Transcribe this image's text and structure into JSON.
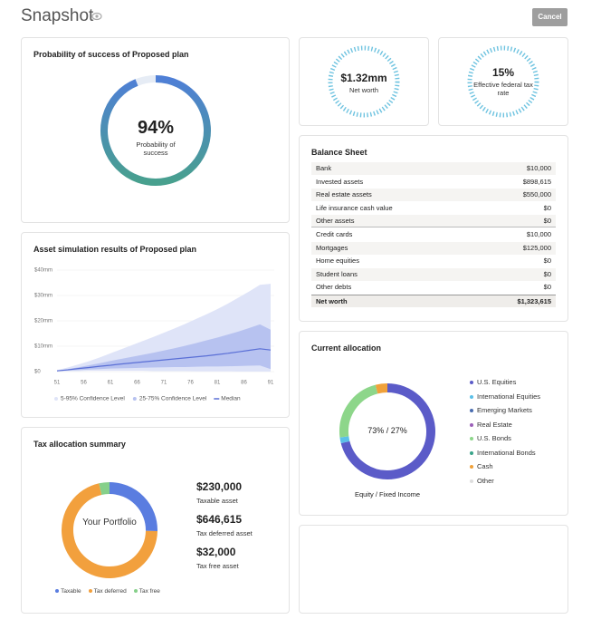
{
  "header": {
    "title": "Snapshot",
    "button": "Cancel"
  },
  "probability": {
    "title": "Probability of success of Proposed plan",
    "chart_data": {
      "type": "gauge",
      "value": 94,
      "value_label": "94%",
      "caption": "Probability of success",
      "colors": [
        "#4f7fd6",
        "#48a08e"
      ],
      "track_color": "#e6ecf5"
    }
  },
  "net_worth": {
    "value": "$1.32mm",
    "label": "Net worth"
  },
  "tax_rate": {
    "value": "15%",
    "label": "Effective federal tax rate"
  },
  "balance_sheet": {
    "title": "Balance Sheet",
    "assets": [
      [
        "Bank",
        "$10,000"
      ],
      [
        "Invested assets",
        "$898,615"
      ],
      [
        "Real estate assets",
        "$550,000"
      ],
      [
        "Life insurance cash value",
        "$0"
      ],
      [
        "Other assets",
        "$0"
      ]
    ],
    "liabilities": [
      [
        "Credit cards",
        "$10,000"
      ],
      [
        "Mortgages",
        "$125,000"
      ],
      [
        "Home equities",
        "$0"
      ],
      [
        "Student loans",
        "$0"
      ],
      [
        "Other debts",
        "$0"
      ]
    ],
    "total": [
      "Net worth",
      "$1,323,615"
    ]
  },
  "simulation": {
    "title": "Asset simulation results of Proposed plan",
    "chart_data": {
      "type": "band",
      "x": [
        51,
        53,
        55,
        57,
        59,
        61,
        63,
        65,
        67,
        69,
        71,
        73,
        75,
        77,
        79,
        81,
        83,
        85,
        87,
        89,
        91
      ],
      "xlim": [
        51,
        91
      ],
      "xticks": [
        51,
        56,
        61,
        66,
        71,
        76,
        81,
        86,
        91
      ],
      "ylim": [
        0,
        40
      ],
      "yticks": [
        {
          "value": 0,
          "label": "$0"
        },
        {
          "value": 10,
          "label": "$10mm"
        },
        {
          "value": 20,
          "label": "$20mm"
        },
        {
          "value": 30,
          "label": "$30mm"
        },
        {
          "value": 40,
          "label": "$40mm"
        }
      ],
      "grid": true,
      "series": [
        {
          "name": "5-95% Confidence Level",
          "color": "#dfe4f8",
          "low": [
            0.1,
            0.2,
            0.2,
            0.3,
            0.3,
            0.3,
            0.3,
            0.3,
            0.3,
            0.2,
            0.2,
            0.2,
            0.2,
            0.1,
            0.1,
            0.1,
            0.1,
            0,
            0,
            0,
            0
          ],
          "high": [
            0.6,
            1.6,
            2.8,
            4.1,
            5.6,
            7.2,
            8.8,
            10.4,
            12.0,
            13.6,
            15.3,
            17.0,
            18.8,
            20.7,
            22.6,
            24.6,
            26.8,
            29.2,
            31.6,
            34.2,
            34.6
          ]
        },
        {
          "name": "25-75% Confidence Level",
          "color": "#b7c2f0",
          "low": [
            0.2,
            0.4,
            0.6,
            0.8,
            1.0,
            1.2,
            1.3,
            1.4,
            1.5,
            1.6,
            1.7,
            1.8,
            1.8,
            1.9,
            2.0,
            2.0,
            2.1,
            2.2,
            2.3,
            2.4,
            1.0
          ],
          "high": [
            0.4,
            1.0,
            1.7,
            2.5,
            3.3,
            4.2,
            5.0,
            5.8,
            6.6,
            7.4,
            8.3,
            9.2,
            10.2,
            11.2,
            12.3,
            13.4,
            14.6,
            15.8,
            17.2,
            18.6,
            16.5
          ]
        },
        {
          "name": "Median",
          "color": "#5a6fd6",
          "values": [
            0.3,
            0.7,
            1.2,
            1.6,
            2.1,
            2.5,
            3.0,
            3.4,
            3.8,
            4.2,
            4.6,
            5.0,
            5.4,
            5.8,
            6.2,
            6.7,
            7.2,
            7.8,
            8.4,
            9.0,
            8.5
          ]
        }
      ]
    }
  },
  "tax_allocation": {
    "title": "Tax allocation summary",
    "chart_data": {
      "type": "donut",
      "center_label": "Your Portfolio",
      "categories": [
        "Taxable",
        "Tax deferred",
        "Tax free"
      ],
      "values": [
        230000,
        646615,
        32000
      ],
      "value_labels": [
        "$230,000",
        "$646,615",
        "$32,000"
      ],
      "captions": [
        "Taxable asset",
        "Tax deferred asset",
        "Tax free asset"
      ],
      "colors": [
        "#5a7de0",
        "#f2a03d",
        "#86d08a"
      ]
    }
  },
  "allocation": {
    "title": "Current allocation",
    "chart_data": {
      "type": "donut",
      "center_label": "73% / 27%",
      "caption": "Equity / Fixed Income",
      "categories": [
        "U.S. Equities",
        "International Equities",
        "Emerging Markets",
        "Real Estate",
        "U.S. Bonds",
        "International Bonds",
        "Cash",
        "Other"
      ],
      "values": [
        71,
        2,
        0,
        0,
        23,
        0,
        4,
        0
      ],
      "colors": [
        "#5b5bc8",
        "#5bc0e8",
        "#4a6db0",
        "#9b5fb8",
        "#8dd68a",
        "#3aa58a",
        "#f0a13a",
        "#dddddd"
      ]
    }
  }
}
